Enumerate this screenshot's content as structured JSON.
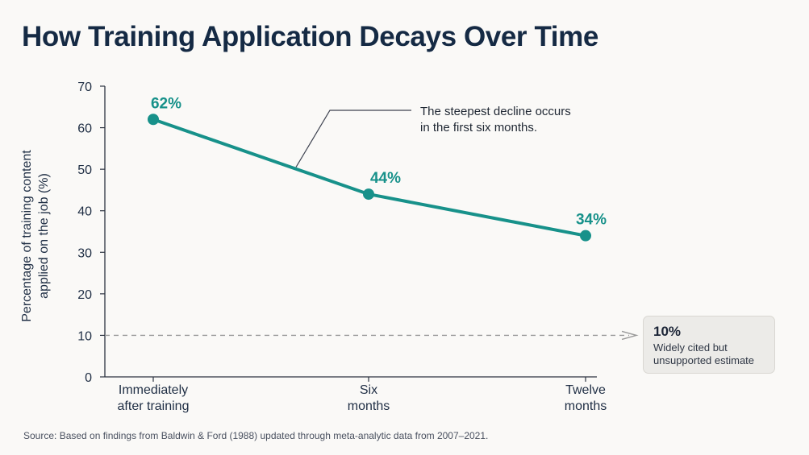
{
  "title": "How Training Application Decays Over Time",
  "source": "Source:  Based on findings from Baldwin & Ford (1988) updated through meta-analytic data from 2007–2021.",
  "colors": {
    "accent": "#17918a",
    "title": "#152a44",
    "axis": "#2c3340",
    "reference_line": "#9a9a9a",
    "background": "#faf9f7"
  },
  "chart_data": {
    "type": "line",
    "title": "How Training Application Decays Over Time",
    "ylabel_lines": [
      "Percentage of training content",
      "applied on the job (%)"
    ],
    "xlabel": "",
    "ylim": [
      0,
      70
    ],
    "yticks": [
      0,
      10,
      20,
      30,
      40,
      50,
      60,
      70
    ],
    "grid": false,
    "categories": [
      [
        "Immediately",
        "after training"
      ],
      [
        "Six",
        "months"
      ],
      [
        "Twelve",
        "months"
      ]
    ],
    "series": [
      {
        "values": [
          62,
          44,
          34
        ],
        "labels": [
          "62%",
          "44%",
          "34%"
        ]
      }
    ],
    "annotation": {
      "lines": [
        "The steepest decline occurs",
        "in the first six months."
      ]
    },
    "reference_line": {
      "value": 10,
      "style": "dashed",
      "label": "10%",
      "note": [
        "Widely cited but",
        "unsupported estimate"
      ]
    }
  }
}
